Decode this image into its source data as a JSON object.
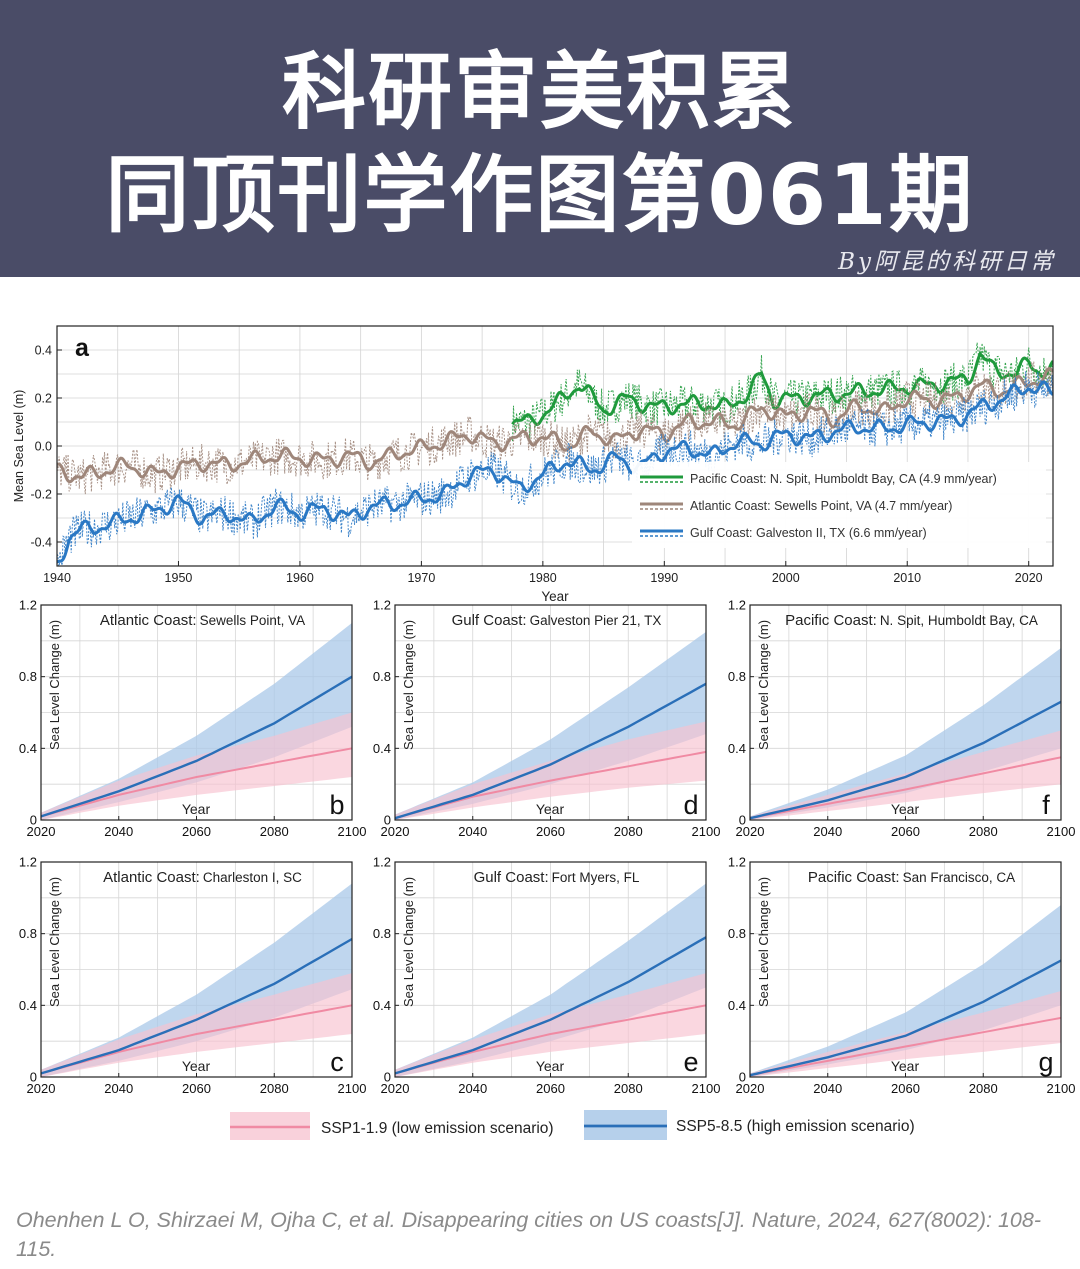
{
  "header": {
    "title_line1": "科研审美积累",
    "title_line2": "同顶刊学作图第061期",
    "byline": "By阿昆的科研日常"
  },
  "colors": {
    "banner_bg": "#4a4c67",
    "pacific": "#1f9a3c",
    "atlantic": "#9e867a",
    "gulf": "#2a78c4",
    "ssp119_line": "#f08aa3",
    "ssp119_band": "#f7c2cf",
    "ssp585_line": "#2a6fb8",
    "ssp585_band": "#a9c8e8"
  },
  "chart_data": [
    {
      "id": "a",
      "type": "line",
      "panel_label": "a",
      "xlabel": "Year",
      "ylabel": "Mean Sea Level (m)",
      "xlim": [
        1940,
        2022
      ],
      "ylim": [
        -0.5,
        0.5
      ],
      "xticks": [
        1940,
        1950,
        1960,
        1970,
        1980,
        1990,
        2000,
        2010,
        2020
      ],
      "yticks": [
        -0.4,
        -0.2,
        0.0,
        0.2,
        0.4
      ],
      "ytick_labels": [
        "-0.4",
        "-0.2",
        "0.0",
        "0.2",
        "0.4"
      ],
      "grid": true,
      "legend_position": "lower-right",
      "series": [
        {
          "name": "Pacific Coast: N. Spit, Humboldt Bay, CA (4.9 mm/year)",
          "color_key": "pacific",
          "x": [
            1977.5,
            1979,
            1981,
            1983,
            1985,
            1987,
            1989,
            1991,
            1993,
            1995,
            1997,
            1998,
            1999,
            2001,
            2003,
            2005,
            2007,
            2009,
            2011,
            2013,
            2015,
            2016,
            2017,
            2019,
            2020,
            2021,
            2022
          ],
          "values": [
            0.1,
            0.1,
            0.17,
            0.26,
            0.15,
            0.2,
            0.16,
            0.17,
            0.18,
            0.16,
            0.22,
            0.3,
            0.19,
            0.2,
            0.21,
            0.22,
            0.23,
            0.24,
            0.25,
            0.26,
            0.28,
            0.38,
            0.32,
            0.3,
            0.35,
            0.31,
            0.32
          ]
        },
        {
          "name": "Atlantic Coast: Sewells Point, VA (4.7 mm/year)",
          "color_key": "atlantic",
          "x": [
            1940,
            1942,
            1944,
            1946,
            1948,
            1950,
            1952,
            1954,
            1956,
            1958,
            1960,
            1962,
            1964,
            1966,
            1968,
            1970,
            1972,
            1974,
            1976,
            1978,
            1980,
            1982,
            1984,
            1986,
            1988,
            1990,
            1992,
            1994,
            1996,
            1998,
            2000,
            2002,
            2004,
            2006,
            2008,
            2010,
            2012,
            2014,
            2016,
            2018,
            2020,
            2022
          ],
          "values": [
            -0.1,
            -0.13,
            -0.1,
            -0.08,
            -0.12,
            -0.09,
            -0.07,
            -0.08,
            -0.06,
            -0.04,
            -0.05,
            -0.06,
            -0.04,
            -0.07,
            -0.03,
            -0.01,
            0.02,
            0.05,
            0.01,
            0.03,
            0.04,
            0.0,
            0.06,
            0.02,
            0.07,
            0.05,
            0.1,
            0.1,
            0.09,
            0.16,
            0.12,
            0.15,
            0.11,
            0.17,
            0.14,
            0.2,
            0.19,
            0.2,
            0.25,
            0.23,
            0.27,
            0.29
          ]
        },
        {
          "name": "Gulf Coast: Galveston II, TX (6.6 mm/year)",
          "color_key": "gulf",
          "x": [
            1940,
            1941,
            1942,
            1944,
            1946,
            1948,
            1950,
            1952,
            1954,
            1956,
            1958,
            1960,
            1962,
            1964,
            1966,
            1968,
            1970,
            1972,
            1974,
            1976,
            1978,
            1980,
            1982,
            1984,
            1986,
            1988,
            1990,
            1992,
            1994,
            1996,
            1998,
            2000,
            2002,
            2004,
            2006,
            2008,
            2010,
            2012,
            2014,
            2016,
            2018,
            2020,
            2022
          ],
          "values": [
            -0.5,
            -0.38,
            -0.35,
            -0.33,
            -0.3,
            -0.27,
            -0.23,
            -0.3,
            -0.28,
            -0.32,
            -0.25,
            -0.28,
            -0.26,
            -0.3,
            -0.25,
            -0.24,
            -0.22,
            -0.2,
            -0.12,
            -0.1,
            -0.18,
            -0.12,
            -0.06,
            -0.1,
            -0.05,
            -0.09,
            -0.02,
            -0.01,
            -0.04,
            0.02,
            0.01,
            0.05,
            0.03,
            0.06,
            0.08,
            0.07,
            0.09,
            0.1,
            0.11,
            0.16,
            0.2,
            0.25,
            0.22
          ]
        }
      ]
    },
    {
      "id": "b",
      "type": "area",
      "panel_label": "b",
      "title_region": "Atlantic Coast:",
      "title_site": "Sewells Point, VA",
      "xlabel": "Year",
      "ylabel": "Sea Level Change (m)",
      "xlim": [
        2020,
        2100
      ],
      "ylim": [
        0,
        1.2
      ],
      "xticks": [
        2020,
        2040,
        2060,
        2080,
        2100
      ],
      "yticks": [
        0,
        0.4,
        0.8,
        1.2
      ],
      "ytick_labels": [
        "0",
        "0.4",
        "0.8",
        "1.2"
      ],
      "x": [
        2020,
        2040,
        2060,
        2080,
        2100
      ],
      "series": [
        {
          "name": "SSP1-1.9 (low emission scenario)",
          "values": [
            0.02,
            0.14,
            0.24,
            0.32,
            0.4
          ],
          "lower": [
            0.0,
            0.08,
            0.14,
            0.19,
            0.24
          ],
          "upper": [
            0.04,
            0.22,
            0.36,
            0.47,
            0.6
          ]
        },
        {
          "name": "SSP5-8.5 (high emission scenario)",
          "values": [
            0.02,
            0.16,
            0.33,
            0.54,
            0.8
          ],
          "lower": [
            0.0,
            0.1,
            0.21,
            0.35,
            0.52
          ],
          "upper": [
            0.04,
            0.23,
            0.47,
            0.76,
            1.1
          ]
        }
      ]
    },
    {
      "id": "d",
      "type": "area",
      "panel_label": "d",
      "title_region": "Gulf Coast:",
      "title_site": "Galveston Pier 21, TX",
      "xlabel": "Year",
      "ylabel": "Sea Level Change (m)",
      "xlim": [
        2020,
        2100
      ],
      "ylim": [
        0,
        1.2
      ],
      "xticks": [
        2020,
        2040,
        2060,
        2080,
        2100
      ],
      "yticks": [
        0,
        0.4,
        0.8,
        1.2
      ],
      "ytick_labels": [
        "0",
        "0.4",
        "0.8",
        "1.2"
      ],
      "x": [
        2020,
        2040,
        2060,
        2080,
        2100
      ],
      "series": [
        {
          "name": "SSP1-1.9 (low emission scenario)",
          "values": [
            0.01,
            0.13,
            0.22,
            0.3,
            0.38
          ],
          "lower": [
            0.0,
            0.07,
            0.13,
            0.18,
            0.22
          ],
          "upper": [
            0.03,
            0.2,
            0.33,
            0.45,
            0.55
          ]
        },
        {
          "name": "SSP5-8.5 (high emission scenario)",
          "values": [
            0.01,
            0.14,
            0.31,
            0.52,
            0.76
          ],
          "lower": [
            0.0,
            0.09,
            0.2,
            0.33,
            0.48
          ],
          "upper": [
            0.03,
            0.21,
            0.45,
            0.74,
            1.05
          ]
        }
      ]
    },
    {
      "id": "f",
      "type": "area",
      "panel_label": "f",
      "title_region": "Pacific Coast:",
      "title_site": "N. Spit, Humboldt Bay, CA",
      "xlabel": "Year",
      "ylabel": "Sea Level Change (m)",
      "xlim": [
        2020,
        2100
      ],
      "ylim": [
        0,
        1.2
      ],
      "xticks": [
        2020,
        2040,
        2060,
        2080,
        2100
      ],
      "yticks": [
        0,
        0.4,
        0.8,
        1.2
      ],
      "ytick_labels": [
        "0",
        "0.4",
        "0.8",
        "1.2"
      ],
      "x": [
        2020,
        2040,
        2060,
        2080,
        2100
      ],
      "series": [
        {
          "name": "SSP1-1.9 (low emission scenario)",
          "values": [
            0.01,
            0.09,
            0.17,
            0.26,
            0.35
          ],
          "lower": [
            0.0,
            0.05,
            0.1,
            0.15,
            0.2
          ],
          "upper": [
            0.02,
            0.14,
            0.26,
            0.38,
            0.5
          ]
        },
        {
          "name": "SSP5-8.5 (high emission scenario)",
          "values": [
            0.01,
            0.11,
            0.24,
            0.43,
            0.66
          ],
          "lower": [
            0.0,
            0.07,
            0.15,
            0.27,
            0.4
          ],
          "upper": [
            0.02,
            0.17,
            0.36,
            0.64,
            0.96
          ]
        }
      ]
    },
    {
      "id": "c",
      "type": "area",
      "panel_label": "c",
      "title_region": "Atlantic Coast:",
      "title_site": "Charleston I, SC",
      "xlabel": "Year",
      "ylabel": "Sea Level Change (m)",
      "xlim": [
        2020,
        2100
      ],
      "ylim": [
        0,
        1.2
      ],
      "xticks": [
        2020,
        2040,
        2060,
        2080,
        2100
      ],
      "yticks": [
        0,
        0.4,
        0.8,
        1.2
      ],
      "ytick_labels": [
        "0",
        "0.4",
        "0.8",
        "1.2"
      ],
      "x": [
        2020,
        2040,
        2060,
        2080,
        2100
      ],
      "series": [
        {
          "name": "SSP1-1.9 (low emission scenario)",
          "values": [
            0.02,
            0.14,
            0.24,
            0.32,
            0.4
          ],
          "lower": [
            0.0,
            0.08,
            0.14,
            0.19,
            0.24
          ],
          "upper": [
            0.04,
            0.21,
            0.35,
            0.46,
            0.58
          ]
        },
        {
          "name": "SSP5-8.5 (high emission scenario)",
          "values": [
            0.02,
            0.15,
            0.32,
            0.52,
            0.77
          ],
          "lower": [
            0.0,
            0.09,
            0.2,
            0.33,
            0.49
          ],
          "upper": [
            0.04,
            0.22,
            0.46,
            0.75,
            1.08
          ]
        }
      ]
    },
    {
      "id": "e",
      "type": "area",
      "panel_label": "e",
      "title_region": "Gulf Coast:",
      "title_site": "Fort Myers, FL",
      "xlabel": "Year",
      "ylabel": "Sea Level Change (m)",
      "xlim": [
        2020,
        2100
      ],
      "ylim": [
        0,
        1.2
      ],
      "xticks": [
        2020,
        2040,
        2060,
        2080,
        2100
      ],
      "yticks": [
        0,
        0.4,
        0.8,
        1.2
      ],
      "ytick_labels": [
        "0",
        "0.4",
        "0.8",
        "1.2"
      ],
      "x": [
        2020,
        2040,
        2060,
        2080,
        2100
      ],
      "series": [
        {
          "name": "SSP1-1.9 (low emission scenario)",
          "values": [
            0.02,
            0.14,
            0.24,
            0.32,
            0.4
          ],
          "lower": [
            0.0,
            0.08,
            0.14,
            0.19,
            0.24
          ],
          "upper": [
            0.04,
            0.21,
            0.35,
            0.46,
            0.58
          ]
        },
        {
          "name": "SSP5-8.5 (high emission scenario)",
          "values": [
            0.02,
            0.15,
            0.32,
            0.53,
            0.78
          ],
          "lower": [
            0.0,
            0.09,
            0.2,
            0.33,
            0.5
          ],
          "upper": [
            0.04,
            0.22,
            0.46,
            0.76,
            1.08
          ]
        }
      ]
    },
    {
      "id": "g",
      "type": "area",
      "panel_label": "g",
      "title_region": "Pacific Coast:",
      "title_site": "San Francisco, CA",
      "xlabel": "Year",
      "ylabel": "Sea Level Change (m)",
      "xlim": [
        2020,
        2100
      ],
      "ylim": [
        0,
        1.2
      ],
      "xticks": [
        2020,
        2040,
        2060,
        2080,
        2100
      ],
      "yticks": [
        0,
        0.4,
        0.8,
        1.2
      ],
      "ytick_labels": [
        "0",
        "0.4",
        "0.8",
        "1.2"
      ],
      "x": [
        2020,
        2040,
        2060,
        2080,
        2100
      ],
      "series": [
        {
          "name": "SSP1-1.9 (low emission scenario)",
          "values": [
            0.01,
            0.09,
            0.17,
            0.25,
            0.33
          ],
          "lower": [
            0.0,
            0.05,
            0.1,
            0.14,
            0.19
          ],
          "upper": [
            0.02,
            0.14,
            0.25,
            0.36,
            0.48
          ]
        },
        {
          "name": "SSP5-8.5 (high emission scenario)",
          "values": [
            0.01,
            0.11,
            0.23,
            0.42,
            0.65
          ],
          "lower": [
            0.0,
            0.07,
            0.15,
            0.26,
            0.4
          ],
          "upper": [
            0.02,
            0.17,
            0.36,
            0.63,
            0.96
          ]
        }
      ]
    }
  ],
  "legend_bottom": {
    "ssp119": "SSP1-1.9 (low emission scenario)",
    "ssp585": "SSP5-8.5 (high emission scenario)"
  },
  "citation": "Ohenhen L O, Shirzaei M, Ojha C, et al. Disappearing cities on US coasts[J]. Nature, 2024, 627(8002): 108-115."
}
